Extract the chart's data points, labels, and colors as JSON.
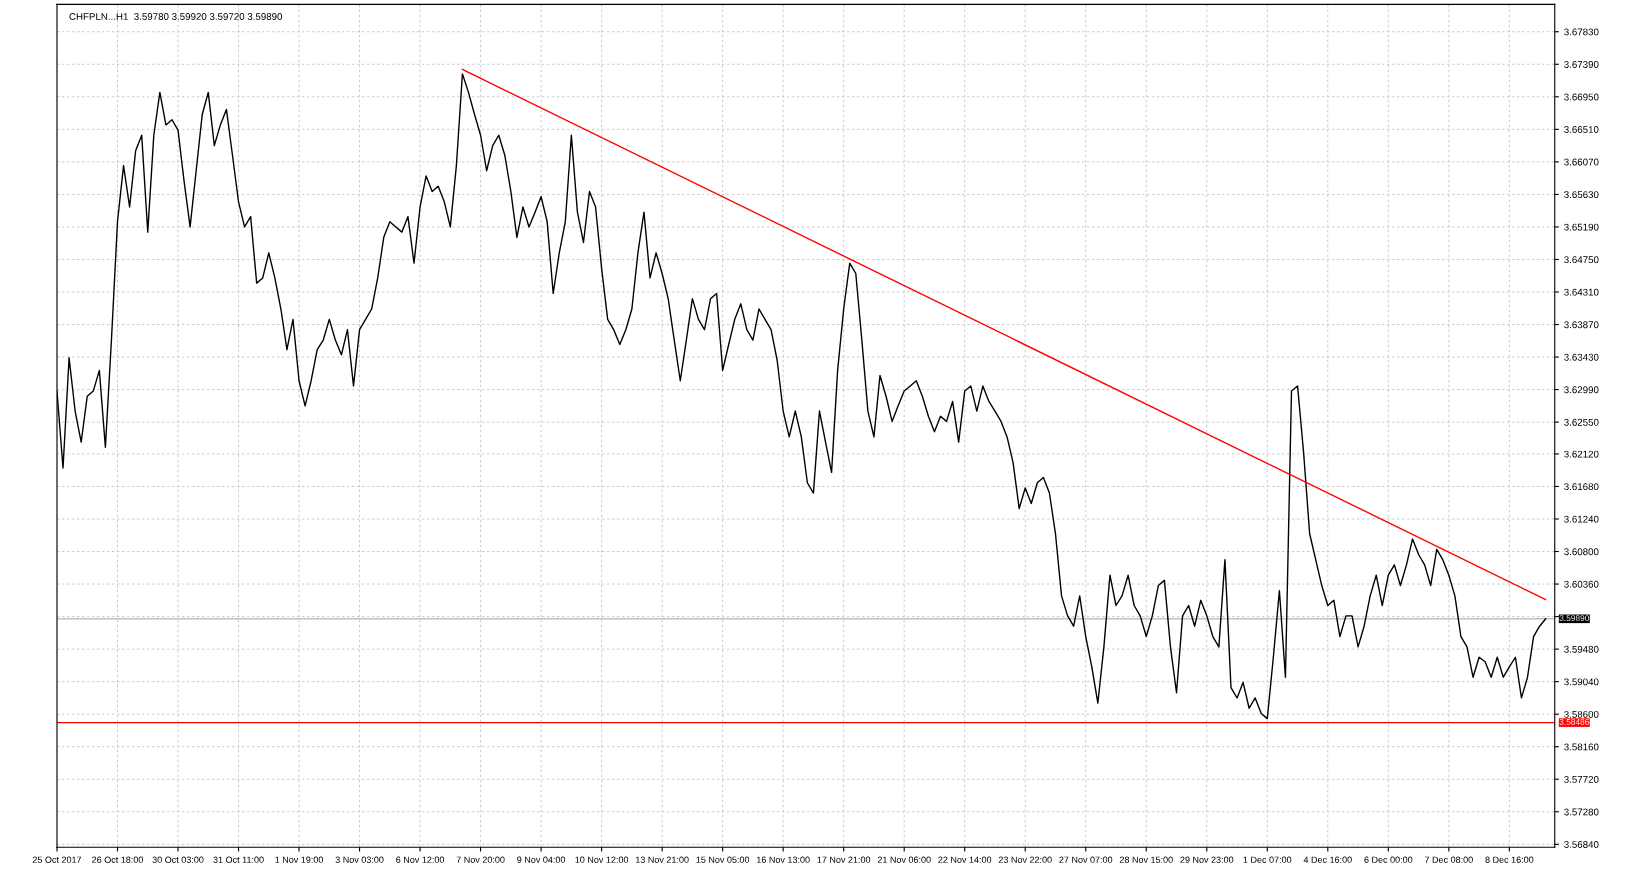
{
  "chart_data": {
    "type": "line",
    "title": "CHFPLN...H1  3.59780 3.59920 3.59720 3.59890",
    "categories": [
      "25 Oct 2017",
      null,
      null,
      null,
      null,
      null,
      null,
      null,
      null,
      null,
      "26 Oct 18:00",
      null,
      null,
      null,
      null,
      null,
      null,
      null,
      null,
      null,
      "30 Oct 03:00",
      null,
      null,
      null,
      null,
      null,
      null,
      null,
      null,
      null,
      "31 Oct 11:00",
      null,
      null,
      null,
      null,
      null,
      null,
      null,
      null,
      null,
      "1 Nov 19:00",
      null,
      null,
      null,
      null,
      null,
      null,
      null,
      null,
      null,
      "3 Nov 03:00",
      null,
      null,
      null,
      null,
      null,
      null,
      null,
      null,
      null,
      "6 Nov 12:00",
      null,
      null,
      null,
      null,
      null,
      null,
      null,
      null,
      null,
      "7 Nov 20:00",
      null,
      null,
      null,
      null,
      null,
      null,
      null,
      null,
      null,
      "9 Nov 04:00",
      null,
      null,
      null,
      null,
      null,
      null,
      null,
      null,
      null,
      "10 Nov 12:00",
      null,
      null,
      null,
      null,
      null,
      null,
      null,
      null,
      null,
      "13 Nov 21:00",
      null,
      null,
      null,
      null,
      null,
      null,
      null,
      null,
      null,
      "15 Nov 05:00",
      null,
      null,
      null,
      null,
      null,
      null,
      null,
      null,
      null,
      "16 Nov 13:00",
      null,
      null,
      null,
      null,
      null,
      null,
      null,
      null,
      null,
      "17 Nov 21:00",
      null,
      null,
      null,
      null,
      null,
      null,
      null,
      null,
      null,
      "21 Nov 06:00",
      null,
      null,
      null,
      null,
      null,
      null,
      null,
      null,
      null,
      "22 Nov 14:00",
      null,
      null,
      null,
      null,
      null,
      null,
      null,
      null,
      null,
      "23 Nov 22:00",
      null,
      null,
      null,
      null,
      null,
      null,
      null,
      null,
      null,
      "27 Nov 07:00",
      null,
      null,
      null,
      null,
      null,
      null,
      null,
      null,
      null,
      "28 Nov 15:00",
      null,
      null,
      null,
      null,
      null,
      null,
      null,
      null,
      null,
      "29 Nov 23:00",
      null,
      null,
      null,
      null,
      null,
      null,
      null,
      null,
      null,
      "1 Dec 07:00",
      null,
      null,
      null,
      null,
      null,
      null,
      null,
      null,
      null,
      "4 Dec 16:00",
      null,
      null,
      null,
      null,
      null,
      null,
      null,
      null,
      null,
      "6 Dec 00:00",
      null,
      null,
      null,
      null,
      null,
      null,
      null,
      null,
      null,
      "7 Dec 08:00",
      null,
      null,
      null,
      null,
      null,
      null,
      null,
      null,
      null,
      "8 Dec 16:00",
      null,
      null,
      null,
      null,
      null,
      null
    ],
    "series": [
      {
        "color": "#000000",
        "values": [
          3.6297,
          3.6193,
          3.6342,
          3.627,
          3.6228,
          3.629,
          3.6297,
          3.6325,
          3.6221,
          3.6366,
          3.6526,
          3.6602,
          3.6546,
          3.6622,
          3.6643,
          3.6512,
          3.6643,
          3.6701,
          3.6657,
          3.6664,
          3.665,
          3.6581,
          3.6519,
          3.6595,
          3.6671,
          3.6701,
          3.6629,
          3.6657,
          3.6678,
          3.6616,
          3.6553,
          3.6519,
          3.6533,
          3.6443,
          3.645,
          3.6484,
          3.645,
          3.6408,
          3.6353,
          3.6394,
          3.6311,
          3.6277,
          3.6311,
          3.6353,
          3.6366,
          3.6394,
          3.6366,
          3.6346,
          3.638,
          3.6304,
          3.638,
          3.6394,
          3.6408,
          3.645,
          3.6505,
          3.6526,
          3.6519,
          3.6512,
          3.6533,
          3.647,
          3.6546,
          3.6588,
          3.6567,
          3.6574,
          3.6553,
          3.6519,
          3.6602,
          3.6726,
          3.6701,
          3.6671,
          3.6643,
          3.6595,
          3.6629,
          3.6643,
          3.6616,
          3.6567,
          3.6505,
          3.6546,
          3.6519,
          3.6539,
          3.656,
          3.6526,
          3.6429,
          3.6484,
          3.6526,
          3.6643,
          3.6539,
          3.6498,
          3.6567,
          3.6546,
          3.6463,
          3.6394,
          3.638,
          3.636,
          3.638,
          3.6408,
          3.6484,
          3.6539,
          3.645,
          3.6484,
          3.6456,
          3.6422,
          3.6366,
          3.6311,
          3.6366,
          3.6422,
          3.6394,
          3.638,
          3.6422,
          3.6429,
          3.6325,
          3.636,
          3.6394,
          3.6415,
          3.638,
          3.6366,
          3.6408,
          3.6394,
          3.638,
          3.6339,
          3.627,
          3.6235,
          3.627,
          3.6235,
          3.6173,
          3.6159,
          3.627,
          3.6228,
          3.6187,
          3.6325,
          3.6408,
          3.647,
          3.6456,
          3.6366,
          3.627,
          3.6235,
          3.6318,
          3.629,
          3.6256,
          3.6277,
          3.6297,
          3.6304,
          3.6311,
          3.629,
          3.6263,
          3.6242,
          3.6263,
          3.6256,
          3.6283,
          3.6228,
          3.6297,
          3.6304,
          3.627,
          3.6304,
          3.6283,
          3.627,
          3.6256,
          3.6235,
          3.62,
          3.6138,
          3.6166,
          3.6145,
          3.6173,
          3.618,
          3.6159,
          3.6104,
          3.602,
          3.5993,
          3.5979,
          3.602,
          3.5965,
          3.5924,
          3.5875,
          3.5951,
          3.6048,
          3.6007,
          3.602,
          3.6048,
          3.6007,
          3.5993,
          3.5965,
          3.5993,
          3.6034,
          3.6041,
          3.5951,
          3.5889,
          3.5993,
          3.6007,
          3.5979,
          3.6014,
          3.5993,
          3.5965,
          3.5951,
          3.6069,
          3.5896,
          3.5882,
          3.5903,
          3.5868,
          3.5882,
          3.5861,
          3.5854,
          3.5937,
          3.6027,
          3.591,
          3.6297,
          3.6304,
          3.6214,
          3.6104,
          3.6069,
          3.6034,
          3.6007,
          3.6014,
          3.5965,
          3.5993,
          3.5993,
          3.5951,
          3.5979,
          3.602,
          3.6048,
          3.6007,
          3.6048,
          3.6062,
          3.6034,
          3.6062,
          3.6097,
          3.6076,
          3.6062,
          3.6034,
          3.6083,
          3.6069,
          3.6048,
          3.602,
          3.5965,
          3.5951,
          3.591,
          3.5937,
          3.5931,
          3.591,
          3.5937,
          3.591,
          3.5924,
          3.5937,
          3.5882,
          3.591,
          3.5965,
          3.5979,
          3.5989
        ]
      },
      {
        "color": "#ff0000",
        "values": [
          null,
          null,
          null,
          null,
          null,
          null,
          null,
          null,
          null,
          null,
          null,
          null,
          null,
          null,
          null,
          null,
          null,
          null,
          null,
          null,
          null,
          null,
          null,
          null,
          null,
          null,
          null,
          null,
          null,
          null,
          null,
          null,
          null,
          null,
          null,
          null,
          null,
          null,
          null,
          null,
          null,
          null,
          null,
          null,
          null,
          null,
          null,
          null,
          null,
          null,
          null,
          null,
          null,
          null,
          null,
          null,
          null,
          null,
          null,
          null,
          null,
          null,
          null,
          null,
          null,
          null,
          null,
          3.6732,
          null,
          null,
          null,
          null,
          null,
          null,
          null,
          null,
          null,
          null,
          null,
          null,
          null,
          null,
          null,
          null,
          null,
          null,
          null,
          null,
          null,
          null,
          null,
          null,
          null,
          null,
          null,
          null,
          null,
          null,
          null,
          null,
          null,
          null,
          null,
          null,
          null,
          null,
          null,
          null,
          null,
          null,
          null,
          null,
          null,
          null,
          null,
          null,
          null,
          null,
          null,
          null,
          null,
          null,
          null,
          null,
          null,
          null,
          null,
          null,
          null,
          null,
          null,
          null,
          null,
          null,
          null,
          null,
          null,
          null,
          null,
          null,
          null,
          null,
          null,
          null,
          null,
          null,
          null,
          null,
          null,
          null,
          null,
          null,
          null,
          null,
          null,
          null,
          null,
          null,
          null,
          null,
          null,
          null,
          null,
          null,
          null,
          null,
          null,
          null,
          null,
          null,
          null,
          null,
          null,
          null,
          null,
          null,
          null,
          null,
          null,
          null,
          null,
          null,
          null,
          null,
          null,
          null,
          null,
          null,
          null,
          null,
          null,
          null,
          null,
          null,
          null,
          null,
          null,
          null,
          null,
          null,
          null,
          null,
          null,
          null,
          null,
          null,
          null,
          null,
          null,
          null,
          null,
          null,
          null,
          null,
          null,
          null,
          null,
          null,
          null,
          null,
          null,
          null,
          null,
          null,
          null,
          null,
          null,
          null,
          null,
          null,
          null,
          null,
          null,
          null,
          null,
          null,
          null,
          null,
          null,
          null,
          null,
          null,
          null,
          null,
          null,
          null,
          3.6015
        ]
      }
    ],
    "ylim": [
      3.568,
      3.682
    ],
    "yticks": [
      {
        "value": 3.5684,
        "label": "3.56840"
      },
      {
        "value": 3.5728,
        "label": "3.57280"
      },
      {
        "value": 3.5772,
        "label": "3.57720"
      },
      {
        "value": 3.5816,
        "label": "3.58160"
      },
      {
        "value": 3.586,
        "label": "3.58600"
      },
      {
        "value": 3.5904,
        "label": "3.59040"
      },
      {
        "value": 3.5948,
        "label": "3.59480"
      },
      {
        "value": 3.5992,
        "label": null
      },
      {
        "value": 3.6036,
        "label": "3.60360"
      },
      {
        "value": 3.608,
        "label": "3.60800"
      },
      {
        "value": 3.6124,
        "label": "3.61240"
      },
      {
        "value": 3.6168,
        "label": "3.61680"
      },
      {
        "value": 3.6212,
        "label": "3.62120"
      },
      {
        "value": 3.6255,
        "label": "3.62550"
      },
      {
        "value": 3.6299,
        "label": "3.62990"
      },
      {
        "value": 3.6343,
        "label": "3.63430"
      },
      {
        "value": 3.6387,
        "label": "3.63870"
      },
      {
        "value": 3.6431,
        "label": "3.64310"
      },
      {
        "value": 3.6475,
        "label": "3.64750"
      },
      {
        "value": 3.6519,
        "label": "3.65190"
      },
      {
        "value": 3.6563,
        "label": "3.65630"
      },
      {
        "value": 3.6607,
        "label": "3.66070"
      },
      {
        "value": 3.6651,
        "label": "3.66510"
      },
      {
        "value": 3.6695,
        "label": "3.66950"
      },
      {
        "value": 3.6739,
        "label": "3.67390"
      },
      {
        "value": 3.6783,
        "label": "3.67830"
      }
    ],
    "ref_lines": [
      {
        "axis": "y",
        "value": 3.5989,
        "label": "3.59890",
        "color": "#c0c0c0"
      },
      {
        "axis": "y",
        "value": 3.58486,
        "label": "3.58486",
        "color": "#ff0000"
      }
    ],
    "grid": true,
    "marker": "none",
    "line_style": "solid",
    "legend": false
  }
}
